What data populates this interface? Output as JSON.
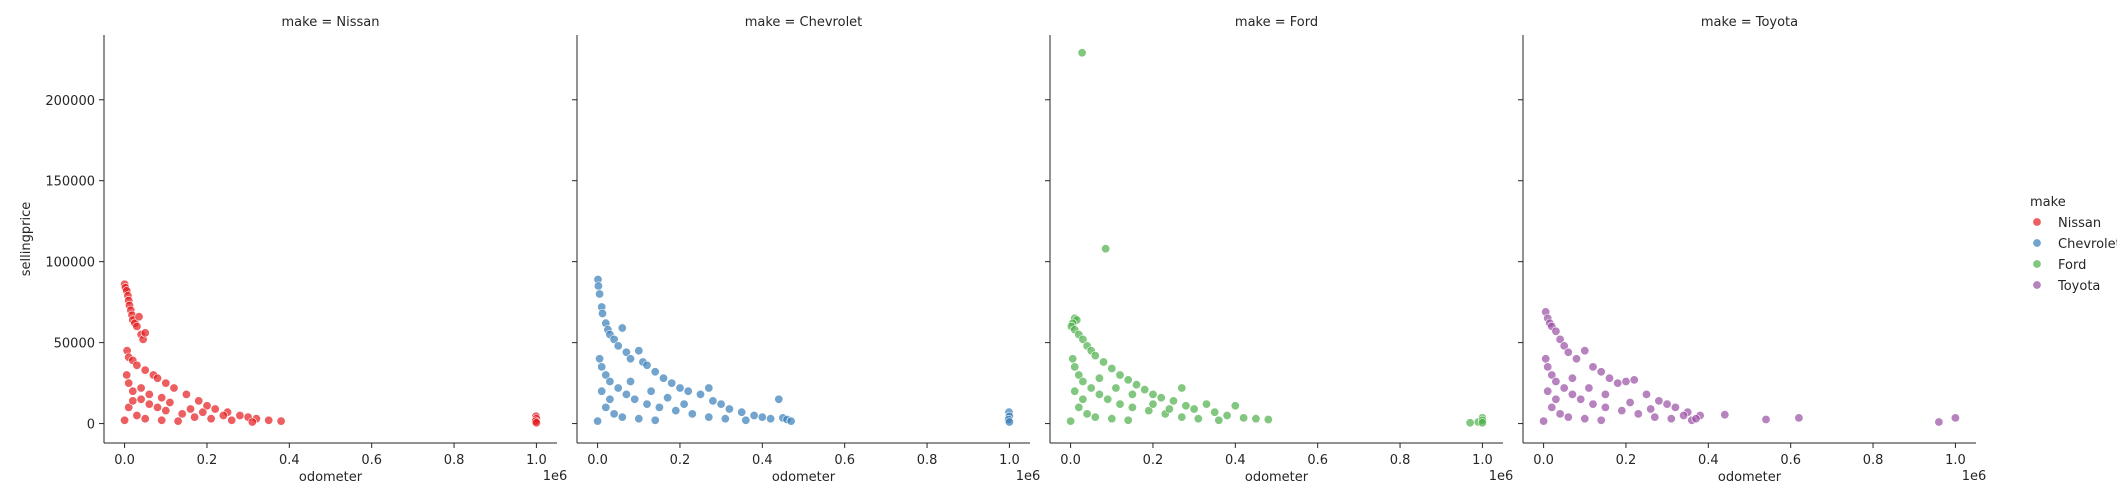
{
  "chart_data": {
    "type": "scatter",
    "facet_variable": "make",
    "xlabel": "odometer",
    "ylabel": "sellingprice",
    "x_offset_text": "1e6",
    "xlim": [
      -0.05,
      1.05
    ],
    "ylim": [
      -12000,
      240000
    ],
    "x_ticks": [
      0.0,
      0.2,
      0.4,
      0.6,
      0.8,
      1.0
    ],
    "x_tick_labels": [
      "0.0",
      "0.2",
      "0.4",
      "0.6",
      "0.8",
      "1.0"
    ],
    "y_ticks": [
      0,
      50000,
      100000,
      150000,
      200000
    ],
    "y_tick_labels": [
      "0",
      "50000",
      "100000",
      "150000",
      "200000"
    ],
    "grid": false,
    "legend": {
      "title": "make",
      "placement": "right"
    },
    "facets": [
      {
        "title": "make = Nissan",
        "series": "Nissan",
        "color": "#e41a1c",
        "points": [
          [
            0.0,
            86000
          ],
          [
            0.002,
            84000
          ],
          [
            0.005,
            82000
          ],
          [
            0.008,
            79000
          ],
          [
            0.01,
            76000
          ],
          [
            0.012,
            73000
          ],
          [
            0.015,
            70000
          ],
          [
            0.018,
            67000
          ],
          [
            0.02,
            64000
          ],
          [
            0.025,
            62000
          ],
          [
            0.03,
            60000
          ],
          [
            0.035,
            66000
          ],
          [
            0.04,
            55000
          ],
          [
            0.045,
            52000
          ],
          [
            0.05,
            56000
          ],
          [
            0.006,
            45000
          ],
          [
            0.01,
            41000
          ],
          [
            0.02,
            39000
          ],
          [
            0.03,
            36000
          ],
          [
            0.05,
            33000
          ],
          [
            0.07,
            30000
          ],
          [
            0.08,
            28000
          ],
          [
            0.1,
            25000
          ],
          [
            0.12,
            22000
          ],
          [
            0.15,
            18000
          ],
          [
            0.18,
            14000
          ],
          [
            0.2,
            11000
          ],
          [
            0.22,
            9000
          ],
          [
            0.25,
            7000
          ],
          [
            0.28,
            5000
          ],
          [
            0.3,
            4000
          ],
          [
            0.32,
            3000
          ],
          [
            0.35,
            2000
          ],
          [
            0.38,
            1500
          ],
          [
            0.005,
            30000
          ],
          [
            0.01,
            25000
          ],
          [
            0.02,
            20000
          ],
          [
            0.04,
            15000
          ],
          [
            0.06,
            12000
          ],
          [
            0.08,
            10000
          ],
          [
            0.1,
            8000
          ],
          [
            0.14,
            6000
          ],
          [
            0.17,
            4000
          ],
          [
            0.21,
            3000
          ],
          [
            0.26,
            2000
          ],
          [
            0.31,
            1000
          ],
          [
            0.03,
            5000
          ],
          [
            0.05,
            3000
          ],
          [
            0.09,
            2000
          ],
          [
            0.13,
            1500
          ],
          [
            0.0,
            2000
          ],
          [
            0.01,
            10000
          ],
          [
            0.02,
            14000
          ],
          [
            0.04,
            22000
          ],
          [
            0.06,
            18000
          ],
          [
            0.09,
            16000
          ],
          [
            0.11,
            13000
          ],
          [
            0.16,
            9000
          ],
          [
            0.19,
            7000
          ],
          [
            0.24,
            5000
          ],
          [
            0.999,
            4500
          ],
          [
            1.0,
            3000
          ],
          [
            0.998,
            1500
          ],
          [
            1.0,
            500
          ]
        ]
      },
      {
        "title": "make = Chevrolet",
        "series": "Chevrolet",
        "color": "#377eb8",
        "points": [
          [
            0.001,
            89000
          ],
          [
            0.002,
            85000
          ],
          [
            0.005,
            80000
          ],
          [
            0.01,
            72000
          ],
          [
            0.012,
            68000
          ],
          [
            0.02,
            62000
          ],
          [
            0.025,
            58000
          ],
          [
            0.03,
            55000
          ],
          [
            0.04,
            52000
          ],
          [
            0.05,
            48000
          ],
          [
            0.06,
            59000
          ],
          [
            0.07,
            44000
          ],
          [
            0.08,
            40000
          ],
          [
            0.1,
            45000
          ],
          [
            0.11,
            38000
          ],
          [
            0.12,
            36000
          ],
          [
            0.14,
            32000
          ],
          [
            0.16,
            28000
          ],
          [
            0.18,
            25000
          ],
          [
            0.2,
            22000
          ],
          [
            0.22,
            20000
          ],
          [
            0.25,
            18000
          ],
          [
            0.27,
            22000
          ],
          [
            0.28,
            14000
          ],
          [
            0.3,
            12000
          ],
          [
            0.32,
            9000
          ],
          [
            0.35,
            7000
          ],
          [
            0.38,
            5000
          ],
          [
            0.4,
            4000
          ],
          [
            0.42,
            3000
          ],
          [
            0.44,
            15000
          ],
          [
            0.45,
            3500
          ],
          [
            0.46,
            2500
          ],
          [
            0.47,
            1500
          ],
          [
            0.005,
            40000
          ],
          [
            0.01,
            35000
          ],
          [
            0.02,
            30000
          ],
          [
            0.03,
            26000
          ],
          [
            0.05,
            22000
          ],
          [
            0.07,
            18000
          ],
          [
            0.09,
            15000
          ],
          [
            0.12,
            12000
          ],
          [
            0.15,
            10000
          ],
          [
            0.19,
            8000
          ],
          [
            0.23,
            6000
          ],
          [
            0.27,
            4000
          ],
          [
            0.31,
            3000
          ],
          [
            0.36,
            2000
          ],
          [
            0.02,
            10000
          ],
          [
            0.04,
            6000
          ],
          [
            0.06,
            4000
          ],
          [
            0.1,
            3000
          ],
          [
            0.14,
            2000
          ],
          [
            0.0,
            1500
          ],
          [
            0.01,
            20000
          ],
          [
            0.03,
            15000
          ],
          [
            0.08,
            26000
          ],
          [
            0.13,
            20000
          ],
          [
            0.17,
            16000
          ],
          [
            0.21,
            12000
          ],
          [
            0.999,
            7000
          ],
          [
            1.0,
            4500
          ],
          [
            0.998,
            2500
          ],
          [
            1.0,
            1000
          ]
        ]
      },
      {
        "title": "make = Ford",
        "series": "Ford",
        "color": "#4daf4a",
        "points": [
          [
            0.028,
            229000
          ],
          [
            0.085,
            108000
          ],
          [
            0.01,
            65000
          ],
          [
            0.015,
            64000
          ],
          [
            0.005,
            62000
          ],
          [
            0.002,
            60000
          ],
          [
            0.01,
            58000
          ],
          [
            0.02,
            55000
          ],
          [
            0.03,
            52000
          ],
          [
            0.04,
            48000
          ],
          [
            0.05,
            45000
          ],
          [
            0.06,
            42000
          ],
          [
            0.08,
            38000
          ],
          [
            0.1,
            34000
          ],
          [
            0.12,
            30000
          ],
          [
            0.14,
            27000
          ],
          [
            0.16,
            24000
          ],
          [
            0.18,
            21000
          ],
          [
            0.2,
            18000
          ],
          [
            0.22,
            16000
          ],
          [
            0.25,
            14000
          ],
          [
            0.27,
            22000
          ],
          [
            0.28,
            11000
          ],
          [
            0.3,
            9000
          ],
          [
            0.33,
            12000
          ],
          [
            0.35,
            7000
          ],
          [
            0.38,
            5000
          ],
          [
            0.4,
            11000
          ],
          [
            0.42,
            3500
          ],
          [
            0.45,
            3000
          ],
          [
            0.48,
            2500
          ],
          [
            0.005,
            40000
          ],
          [
            0.01,
            35000
          ],
          [
            0.02,
            30000
          ],
          [
            0.03,
            26000
          ],
          [
            0.05,
            22000
          ],
          [
            0.07,
            18000
          ],
          [
            0.09,
            15000
          ],
          [
            0.12,
            12000
          ],
          [
            0.15,
            10000
          ],
          [
            0.19,
            8000
          ],
          [
            0.23,
            6000
          ],
          [
            0.27,
            4000
          ],
          [
            0.31,
            3000
          ],
          [
            0.36,
            2000
          ],
          [
            0.02,
            10000
          ],
          [
            0.04,
            6000
          ],
          [
            0.06,
            4000
          ],
          [
            0.1,
            3000
          ],
          [
            0.14,
            2000
          ],
          [
            0.0,
            1500
          ],
          [
            0.01,
            20000
          ],
          [
            0.03,
            15000
          ],
          [
            0.07,
            28000
          ],
          [
            0.11,
            22000
          ],
          [
            0.15,
            18000
          ],
          [
            0.2,
            12000
          ],
          [
            0.24,
            9000
          ],
          [
            0.97,
            500
          ],
          [
            0.99,
            1000
          ],
          [
            1.0,
            3500
          ],
          [
            1.0,
            2000
          ],
          [
            1.0,
            500
          ]
        ]
      },
      {
        "title": "make = Toyota",
        "series": "Toyota",
        "color": "#984ea3",
        "points": [
          [
            0.005,
            69000
          ],
          [
            0.01,
            65000
          ],
          [
            0.015,
            62000
          ],
          [
            0.02,
            60000
          ],
          [
            0.03,
            57000
          ],
          [
            0.04,
            52000
          ],
          [
            0.05,
            48000
          ],
          [
            0.06,
            44000
          ],
          [
            0.08,
            40000
          ],
          [
            0.1,
            45000
          ],
          [
            0.12,
            35000
          ],
          [
            0.14,
            32000
          ],
          [
            0.16,
            28000
          ],
          [
            0.18,
            25000
          ],
          [
            0.2,
            26000
          ],
          [
            0.22,
            27000
          ],
          [
            0.25,
            18000
          ],
          [
            0.28,
            14000
          ],
          [
            0.3,
            12000
          ],
          [
            0.32,
            10000
          ],
          [
            0.35,
            7000
          ],
          [
            0.38,
            5000
          ],
          [
            0.44,
            5500
          ],
          [
            0.54,
            2500
          ],
          [
            0.62,
            3500
          ],
          [
            0.96,
            1000
          ],
          [
            1.0,
            3500
          ],
          [
            0.005,
            40000
          ],
          [
            0.01,
            35000
          ],
          [
            0.02,
            30000
          ],
          [
            0.03,
            26000
          ],
          [
            0.05,
            22000
          ],
          [
            0.07,
            18000
          ],
          [
            0.09,
            15000
          ],
          [
            0.12,
            12000
          ],
          [
            0.15,
            10000
          ],
          [
            0.19,
            8000
          ],
          [
            0.23,
            6000
          ],
          [
            0.27,
            4000
          ],
          [
            0.31,
            3000
          ],
          [
            0.36,
            2000
          ],
          [
            0.02,
            10000
          ],
          [
            0.04,
            6000
          ],
          [
            0.06,
            4000
          ],
          [
            0.1,
            3000
          ],
          [
            0.14,
            2000
          ],
          [
            0.0,
            1500
          ],
          [
            0.01,
            20000
          ],
          [
            0.03,
            15000
          ],
          [
            0.07,
            28000
          ],
          [
            0.11,
            22000
          ],
          [
            0.15,
            18000
          ],
          [
            0.21,
            13000
          ],
          [
            0.26,
            9000
          ],
          [
            0.34,
            5000
          ],
          [
            0.37,
            3000
          ]
        ]
      }
    ]
  }
}
